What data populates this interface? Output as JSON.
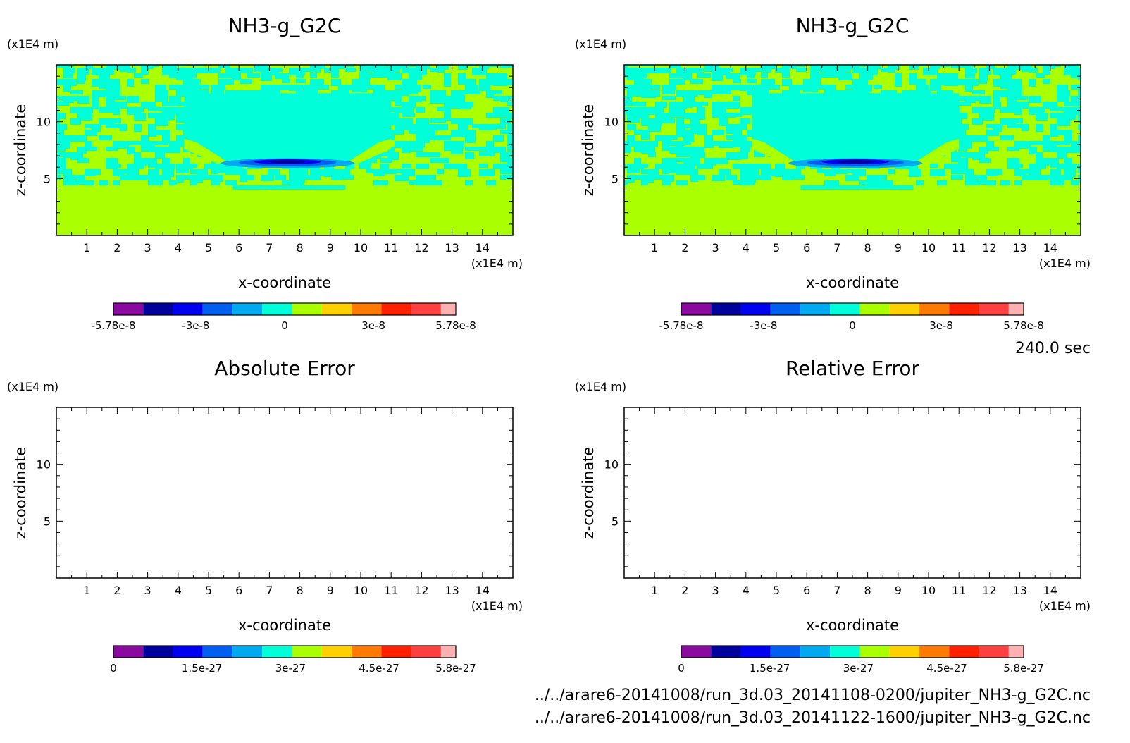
{
  "palette": [
    "#8a0aa0",
    "#00009c",
    "#0000f0",
    "#005ff0",
    "#00aaf0",
    "#00ffd8",
    "#aaff00",
    "#ffd000",
    "#ff7a00",
    "#ff2000",
    "#ff4040",
    "#ffb0b0"
  ],
  "time_label": "240.0 sec",
  "files": [
    "../../arare6-20141008/run_3d.03_20141108-0200/jupiter_NH3-g_G2C.nc",
    "../../arare6-20141008/run_3d.03_20141122-1600/jupiter_NH3-g_G2C.nc"
  ],
  "chart_data": [
    {
      "type": "heatmap",
      "title": "NH3-g_G2C",
      "xlabel": "x-coordinate",
      "ylabel": "z-coordinate",
      "x_unit": "(x1E4 m)",
      "y_unit": "(x1E4 m)",
      "xlim": [
        0,
        15
      ],
      "ylim": [
        0,
        15
      ],
      "x_ticks": [
        1,
        2,
        3,
        4,
        5,
        6,
        7,
        8,
        9,
        10,
        11,
        12,
        13,
        14
      ],
      "y_ticks": [
        5,
        10
      ],
      "colorbar": {
        "min": -5.78e-08,
        "max": 5.78e-08,
        "tick_labels": [
          "-5.78e-8",
          "-3e-8",
          "0",
          "3e-8",
          "5.78e-8"
        ],
        "tick_positions": [
          -5.78e-08,
          -3e-08,
          0,
          3e-08,
          5.78e-08
        ]
      },
      "field": "mixed"
    },
    {
      "type": "heatmap",
      "title": "NH3-g_G2C",
      "xlabel": "x-coordinate",
      "ylabel": "z-coordinate",
      "x_unit": "(x1E4 m)",
      "y_unit": "(x1E4 m)",
      "xlim": [
        0,
        15
      ],
      "ylim": [
        0,
        15
      ],
      "x_ticks": [
        1,
        2,
        3,
        4,
        5,
        6,
        7,
        8,
        9,
        10,
        11,
        12,
        13,
        14
      ],
      "y_ticks": [
        5,
        10
      ],
      "colorbar": {
        "min": -5.78e-08,
        "max": 5.78e-08,
        "tick_labels": [
          "-5.78e-8",
          "-3e-8",
          "0",
          "3e-8",
          "5.78e-8"
        ],
        "tick_positions": [
          -5.78e-08,
          -3e-08,
          0,
          3e-08,
          5.78e-08
        ]
      },
      "field": "mixed"
    },
    {
      "type": "heatmap",
      "title": "Absolute Error",
      "xlabel": "x-coordinate",
      "ylabel": "z-coordinate",
      "x_unit": "(x1E4 m)",
      "y_unit": "(x1E4 m)",
      "xlim": [
        0,
        15
      ],
      "ylim": [
        0,
        15
      ],
      "x_ticks": [
        1,
        2,
        3,
        4,
        5,
        6,
        7,
        8,
        9,
        10,
        11,
        12,
        13,
        14
      ],
      "y_ticks": [
        5,
        10
      ],
      "colorbar": {
        "min": 0,
        "max": 5.8e-27,
        "tick_labels": [
          "0",
          "1.5e-27",
          "3e-27",
          "4.5e-27",
          "5.8e-27"
        ],
        "tick_positions": [
          0,
          1.5e-27,
          3e-27,
          4.5e-27,
          5.8e-27
        ]
      },
      "field": "empty"
    },
    {
      "type": "heatmap",
      "title": "Relative Error",
      "xlabel": "x-coordinate",
      "ylabel": "z-coordinate",
      "x_unit": "(x1E4 m)",
      "y_unit": "(x1E4 m)",
      "xlim": [
        0,
        15
      ],
      "ylim": [
        0,
        15
      ],
      "x_ticks": [
        1,
        2,
        3,
        4,
        5,
        6,
        7,
        8,
        9,
        10,
        11,
        12,
        13,
        14
      ],
      "y_ticks": [
        5,
        10
      ],
      "colorbar": {
        "min": 0,
        "max": 5.8e-27,
        "tick_labels": [
          "0",
          "1.5e-27",
          "3e-27",
          "4.5e-27",
          "5.8e-27"
        ],
        "tick_positions": [
          0,
          1.5e-27,
          3e-27,
          4.5e-27,
          5.8e-27
        ]
      },
      "field": "empty"
    }
  ]
}
